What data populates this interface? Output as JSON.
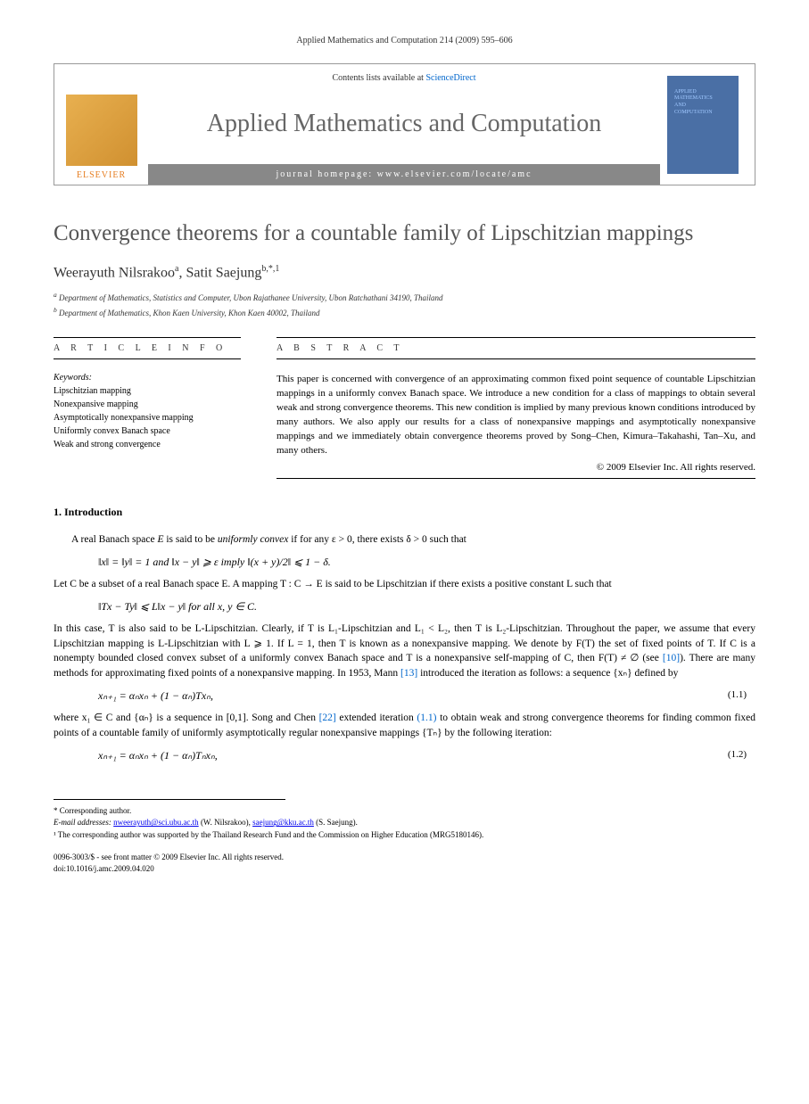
{
  "running_head": "Applied Mathematics and Computation 214 (2009) 595–606",
  "header": {
    "contents_prefix": "Contents lists available at ",
    "contents_link": "ScienceDirect",
    "journal": "Applied Mathematics and Computation",
    "homepage_label": "journal homepage: www.elsevier.com/locate/amc",
    "publisher": "ELSEVIER",
    "cover_line1": "APPLIED",
    "cover_line2": "MATHEMATICS",
    "cover_line3": "AND",
    "cover_line4": "COMPUTATION"
  },
  "title": "Convergence theorems for a countable family of Lipschitzian mappings",
  "authors": {
    "a1_name": "Weerayuth Nilsrakoo",
    "a1_sup": "a",
    "a2_name": "Satit Saejung",
    "a2_sup": "b,*,1"
  },
  "affiliations": {
    "a": "Department of Mathematics, Statistics and Computer, Ubon Rajathanee University, Ubon Ratchathani 34190, Thailand",
    "b": "Department of Mathematics, Khon Kaen University, Khon Kaen 40002, Thailand"
  },
  "info_header": "A R T I C L E   I N F O",
  "abstract_header": "A B S T R A C T",
  "keywords_label": "Keywords:",
  "keywords": [
    "Lipschitzian mapping",
    "Nonexpansive mapping",
    "Asymptotically nonexpansive mapping",
    "Uniformly convex Banach space",
    "Weak and strong convergence"
  ],
  "abstract": "This paper is concerned with convergence of an approximating common fixed point sequence of countable Lipschitzian mappings in a uniformly convex Banach space. We introduce a new condition for a class of mappings to obtain several weak and strong convergence theorems. This new condition is implied by many previous known conditions introduced by many authors. We also apply our results for a class of nonexpansive mappings and asymptotically nonexpansive mappings and we immediately obtain convergence theorems proved by Song–Chen, Kimura–Takahashi, Tan–Xu, and many others.",
  "copyright": "© 2009 Elsevier Inc. All rights reserved.",
  "section1": "1. Introduction",
  "body": {
    "p1_a": "A real Banach space ",
    "p1_b": " is said to be ",
    "p1_c": "uniformly convex",
    "p1_d": " if for any ε > 0, there exists δ > 0 such that",
    "eq1": "‖x‖ = ‖y‖ = 1   and   ‖x − y‖ ⩾ ε   imply   ‖(x + y)/2‖ ⩽ 1 − δ.",
    "p2": "Let C be a subset of a real Banach space E. A mapping T : C → E is said to be Lipschitzian if there exists a positive constant L such that",
    "eq2": "‖Tx − Ty‖ ⩽ L‖x − y‖   for all x, y ∈ C.",
    "p3_a": "In this case, T is also said to be L-Lipschitzian. Clearly, if T is L₁-Lipschitzian and L₁ < L₂, then T is L₂-Lipschitzian. Throughout the paper, we assume that every Lipschitzian mapping is L-Lipschitzian with L ⩾ 1. If L = 1, then T is known as a nonexpansive mapping. We denote by F(T) the set of fixed points of T. If C is a nonempty bounded closed convex subset of a uniformly convex Banach space and T is a nonexpansive self-mapping of C, then F(T) ≠ ∅ (see ",
    "p3_ref10": "[10]",
    "p3_b": "). There are many methods for approximating fixed points of a nonexpansive mapping. In 1953, Mann ",
    "p3_ref13": "[13]",
    "p3_c": " introduced the iteration as follows: a sequence {xₙ} defined by",
    "eq3": "xₙ₊₁ = αₙxₙ + (1 − αₙ)Txₙ,",
    "eq3_num": "(1.1)",
    "p4_a": "where x₁ ∈ C and {αₙ} is a sequence in [0,1]. Song and Chen ",
    "p4_ref22": "[22]",
    "p4_b": " extended iteration ",
    "p4_ref11": "(1.1)",
    "p4_c": " to obtain weak and strong convergence theorems for finding common fixed points of a countable family of uniformly asymptotically regular nonexpansive mappings {Tₙ} by the following iteration:",
    "eq4": "xₙ₊₁ = αₙxₙ + (1 − αₙ)Tₙxₙ,",
    "eq4_num": "(1.2)"
  },
  "footnotes": {
    "corr": "* Corresponding author.",
    "email_label": "E-mail addresses: ",
    "email1": "nweerayuth@sci.ubu.ac.th",
    "email1_sfx": " (W. Nilsrakoo), ",
    "email2": "saejung@kku.ac.th",
    "email2_sfx": " (S. Saejung).",
    "note1": "¹ The corresponding author was supported by the Thailand Research Fund and the Commission on Higher Education (MRG5180146)."
  },
  "doi": {
    "line1": "0096-3003/$ - see front matter © 2009 Elsevier Inc. All rights reserved.",
    "line2": "doi:10.1016/j.amc.2009.04.020"
  }
}
